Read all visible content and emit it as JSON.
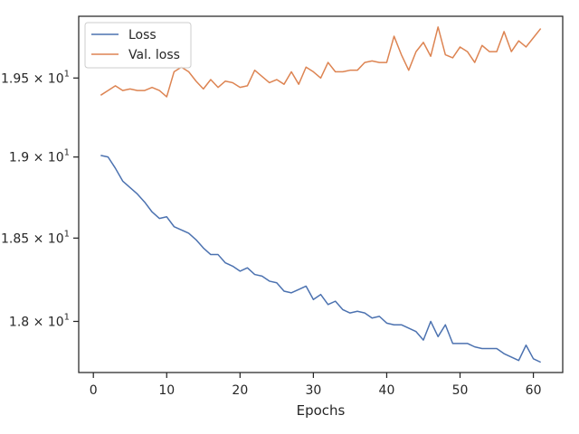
{
  "chart_data": {
    "type": "line",
    "title": "",
    "xlabel": "Epochs",
    "ylabel": "",
    "yscale": "log",
    "xlim": [
      -2,
      64
    ],
    "ylim": [
      17.7,
      19.9
    ],
    "grid": false,
    "legend_position": "top-left",
    "x_ticks": [
      {
        "value": 0,
        "label": "0"
      },
      {
        "value": 10,
        "label": "10"
      },
      {
        "value": 20,
        "label": "20"
      },
      {
        "value": 30,
        "label": "30"
      },
      {
        "value": 40,
        "label": "40"
      },
      {
        "value": 50,
        "label": "50"
      },
      {
        "value": 60,
        "label": "60"
      }
    ],
    "y_ticks": [
      {
        "value": 18.0,
        "mantissa": "1.8",
        "base": "10",
        "exp": "1"
      },
      {
        "value": 18.5,
        "mantissa": "1.85",
        "base": "10",
        "exp": "1"
      },
      {
        "value": 19.0,
        "mantissa": "1.9",
        "base": "10",
        "exp": "1"
      },
      {
        "value": 19.5,
        "mantissa": "1.95",
        "base": "10",
        "exp": "1"
      }
    ],
    "x": [
      1,
      2,
      3,
      4,
      5,
      6,
      7,
      8,
      9,
      10,
      11,
      12,
      13,
      14,
      15,
      16,
      17,
      18,
      19,
      20,
      21,
      22,
      23,
      24,
      25,
      26,
      27,
      28,
      29,
      30,
      31,
      32,
      33,
      34,
      35,
      36,
      37,
      38,
      39,
      40,
      41,
      42,
      43,
      44,
      45,
      46,
      47,
      48,
      49,
      50,
      51,
      52,
      53,
      54,
      55,
      56,
      57,
      58,
      59,
      60,
      61
    ],
    "series": [
      {
        "name": "Loss",
        "color": "#4c72b0",
        "values": [
          19.01,
          19.0,
          18.93,
          18.85,
          18.81,
          18.77,
          18.72,
          18.66,
          18.62,
          18.63,
          18.57,
          18.55,
          18.53,
          18.49,
          18.44,
          18.4,
          18.4,
          18.35,
          18.33,
          18.3,
          18.32,
          18.28,
          18.27,
          18.24,
          18.23,
          18.18,
          18.17,
          18.19,
          18.21,
          18.13,
          18.16,
          18.1,
          18.12,
          18.07,
          18.05,
          18.06,
          18.05,
          18.02,
          18.03,
          17.99,
          17.98,
          17.98,
          17.96,
          17.94,
          17.89,
          18.0,
          17.91,
          17.98,
          17.87,
          17.87,
          17.87,
          17.85,
          17.84,
          17.84,
          17.84,
          17.81,
          17.79,
          17.77,
          17.86,
          17.78,
          17.76
        ]
      },
      {
        "name": "Val. loss",
        "color": "#dd8452",
        "values": [
          19.39,
          19.42,
          19.45,
          19.42,
          19.43,
          19.42,
          19.42,
          19.44,
          19.42,
          19.38,
          19.54,
          19.57,
          19.54,
          19.48,
          19.43,
          19.49,
          19.44,
          19.48,
          19.47,
          19.44,
          19.45,
          19.55,
          19.51,
          19.47,
          19.49,
          19.46,
          19.54,
          19.46,
          19.57,
          19.54,
          19.5,
          19.6,
          19.54,
          19.54,
          19.55,
          19.55,
          19.6,
          19.61,
          19.6,
          19.6,
          19.77,
          19.65,
          19.55,
          19.67,
          19.73,
          19.64,
          19.83,
          19.65,
          19.63,
          19.7,
          19.67,
          19.6,
          19.71,
          19.67,
          19.67,
          19.8,
          19.67,
          19.74,
          19.7,
          19.76,
          19.82
        ]
      }
    ]
  }
}
